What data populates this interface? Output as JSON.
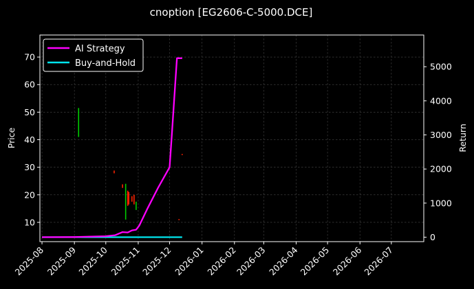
{
  "chart_data": {
    "type": "line",
    "title": "cnoption [EG2606-C-5000.DCE]",
    "xlabel": "",
    "ylabel_left": "Price",
    "ylabel_right": "Return",
    "x_ticks": [
      "2025-08",
      "2025-09",
      "2025-10",
      "2025-11",
      "2025-12",
      "2026-01",
      "2026-02",
      "2026-03",
      "2026-04",
      "2026-05",
      "2026-06",
      "2026-07"
    ],
    "x_range": [
      "2025-07-30",
      "2026-08-01"
    ],
    "y_left_ticks": [
      10,
      20,
      30,
      40,
      50,
      60,
      70
    ],
    "y_left_range": [
      3,
      78
    ],
    "y_right_ticks": [
      0,
      1000,
      2000,
      3000,
      4000,
      5000
    ],
    "y_right_range": [
      -130,
      5930
    ],
    "grid": true,
    "legend_position": "top-left",
    "series": [
      {
        "name": "AI Strategy",
        "axis": "right",
        "color": "#ff00ff",
        "points": [
          [
            "2025-08-01",
            0
          ],
          [
            "2025-09-01",
            5
          ],
          [
            "2025-10-01",
            30
          ],
          [
            "2025-10-10",
            60
          ],
          [
            "2025-10-17",
            150
          ],
          [
            "2025-10-22",
            140
          ],
          [
            "2025-10-26",
            200
          ],
          [
            "2025-10-30",
            220
          ],
          [
            "2025-11-02",
            340
          ],
          [
            "2025-11-10",
            850
          ],
          [
            "2025-11-20",
            1450
          ],
          [
            "2025-12-01",
            2050
          ],
          [
            "2025-12-03",
            2950
          ],
          [
            "2025-12-08",
            5250
          ],
          [
            "2025-12-13",
            5250
          ]
        ]
      },
      {
        "name": "Buy-and-Hold",
        "axis": "right",
        "color": "#00e5ee",
        "points": [
          [
            "2025-08-01",
            0
          ],
          [
            "2025-12-13",
            0
          ]
        ]
      }
    ],
    "price_bars": [
      {
        "date": "2025-09-05",
        "low": 41,
        "high": 51.5,
        "color": "#00cc00"
      },
      {
        "date": "2025-10-09",
        "low": 27.8,
        "high": 28.8,
        "color": "#ff2200"
      },
      {
        "date": "2025-10-17",
        "low": 22.5,
        "high": 23.8,
        "color": "#ff2200"
      },
      {
        "date": "2025-10-20",
        "low": 11,
        "high": 24,
        "color": "#00cc00"
      },
      {
        "date": "2025-10-22",
        "low": 16,
        "high": 21.5,
        "color": "#ff2200"
      },
      {
        "date": "2025-10-23",
        "low": 16.5,
        "high": 21,
        "color": "#ff2200"
      },
      {
        "date": "2025-10-26",
        "low": 17.5,
        "high": 19.5,
        "color": "#ff2200"
      },
      {
        "date": "2025-10-28",
        "low": 16.5,
        "high": 20,
        "color": "#ff2200"
      },
      {
        "date": "2025-10-30",
        "low": 14.5,
        "high": 17.5,
        "color": "#00cc00"
      },
      {
        "date": "2025-12-10",
        "low": 10.8,
        "high": 11.2,
        "color": "#ff2200"
      },
      {
        "date": "2025-12-13",
        "low": 34.4,
        "high": 34.8,
        "color": "#ff2200"
      }
    ]
  }
}
